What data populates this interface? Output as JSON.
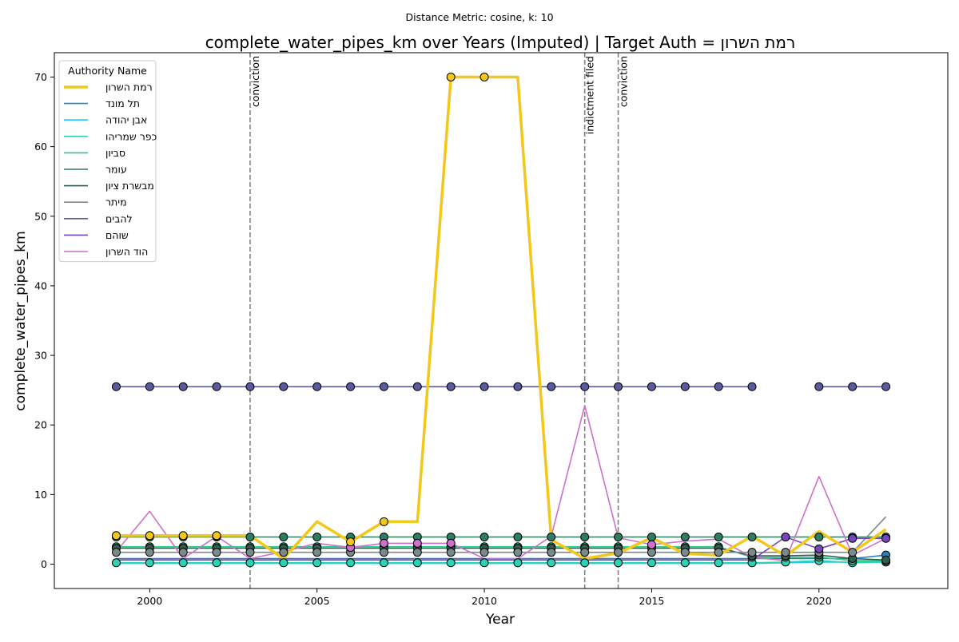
{
  "chart_data": {
    "type": "line",
    "suptitle": "Distance Metric: cosine, k: 10",
    "title": "complete_water_pipes_km over Years (Imputed) | Target Auth = רמת השרון",
    "xlabel": "Year",
    "ylabel": "complete_water_pipes_km",
    "xlim": [
      1997.15,
      2023.85
    ],
    "ylim": [
      -3.5,
      73.5
    ],
    "xticks": [
      2000,
      2005,
      2010,
      2015,
      2020
    ],
    "yticks": [
      0,
      10,
      20,
      30,
      40,
      50,
      60,
      70
    ],
    "grid": false,
    "legend": {
      "title": "Authority Name",
      "placement": "upper-left"
    },
    "events": [
      {
        "x": 2003,
        "label": "conviction"
      },
      {
        "x": 2013,
        "label": "indictment filed"
      },
      {
        "x": 2014,
        "label": "conviction"
      }
    ],
    "x": [
      1999,
      2000,
      2001,
      2002,
      2003,
      2004,
      2005,
      2006,
      2007,
      2008,
      2009,
      2010,
      2011,
      2012,
      2013,
      2014,
      2015,
      2016,
      2017,
      2018,
      2019,
      2020,
      2021,
      2022
    ],
    "series": [
      {
        "name": "רמת השרון",
        "color": "#f2c81a",
        "target": true,
        "values": [
          4.1,
          4.1,
          4.1,
          4.1,
          4.1,
          0.8,
          6.1,
          3.2,
          6.1,
          6.1,
          70,
          70,
          70,
          3.5,
          0.8,
          1.6,
          3.8,
          1.5,
          1.3,
          4.0,
          1.2,
          4.7,
          1.7,
          5.0
        ],
        "markers": [
          0,
          1,
          2,
          3,
          7,
          8,
          10,
          11
        ]
      },
      {
        "name": "תל מונד",
        "color": "#1f83c4",
        "values": [
          0.8,
          0.8,
          0.8,
          0.8,
          0.8,
          0.8,
          0.8,
          0.8,
          0.8,
          0.8,
          0.8,
          0.8,
          0.8,
          0.8,
          0.8,
          0.8,
          0.8,
          0.8,
          0.8,
          0.8,
          0.8,
          0.8,
          0.8,
          1.3
        ],
        "markers": [
          23
        ]
      },
      {
        "name": "אבן יהודה",
        "color": "#22c6ea",
        "values": [
          0.1,
          0.1,
          0.1,
          0.1,
          0.1,
          0.1,
          0.1,
          0.1,
          0.1,
          0.1,
          0.1,
          0.1,
          0.1,
          0.1,
          0.1,
          0.1,
          0.1,
          0.1,
          0.1,
          0.1,
          0.2,
          0.3,
          0.3,
          0.4
        ],
        "markers": []
      },
      {
        "name": "כפר שמריהו",
        "color": "#2bd3b6",
        "values": [
          0.2,
          0.2,
          0.2,
          0.2,
          0.2,
          0.2,
          0.2,
          0.2,
          0.2,
          0.2,
          0.2,
          0.2,
          0.2,
          0.2,
          0.2,
          0.2,
          0.2,
          0.2,
          0.2,
          0.2,
          0.3,
          0.5,
          0.2,
          0.3
        ],
        "markers": [
          0,
          1,
          2,
          3,
          4,
          5,
          6,
          7,
          8,
          9,
          10,
          11,
          12,
          13,
          14,
          15,
          16,
          17,
          18,
          19,
          20,
          21,
          22,
          23
        ]
      },
      {
        "name": "סביון",
        "color": "#2ec98a",
        "values": [
          2.5,
          2.5,
          2.5,
          2.5,
          2.5,
          2.5,
          2.5,
          2.5,
          2.5,
          2.5,
          2.5,
          2.5,
          2.5,
          2.5,
          2.5,
          2.5,
          2.5,
          2.5,
          2.5,
          1.0,
          1.0,
          1.0,
          0.5,
          0.5
        ],
        "markers": [
          0,
          1,
          2,
          3,
          4,
          5,
          6,
          7,
          8,
          9,
          10,
          11,
          12,
          13,
          14,
          15,
          16,
          17,
          18,
          19,
          20,
          21,
          22,
          23
        ]
      },
      {
        "name": "עומר",
        "color": "#2e7d5e",
        "values": [
          3.9,
          3.9,
          3.9,
          3.9,
          3.9,
          3.9,
          3.9,
          3.9,
          3.9,
          3.9,
          3.9,
          3.9,
          3.9,
          3.9,
          3.9,
          3.9,
          3.9,
          3.9,
          3.9,
          3.9,
          3.9,
          3.9,
          3.9,
          3.9
        ],
        "markers": [
          0,
          1,
          2,
          3,
          4,
          5,
          6,
          7,
          8,
          9,
          10,
          11,
          12,
          13,
          14,
          15,
          16,
          17,
          18,
          19,
          20,
          21,
          22,
          23
        ]
      },
      {
        "name": "מבשרת ציון",
        "color": "#2f5e50",
        "values": [
          2.3,
          2.3,
          2.3,
          2.3,
          2.3,
          2.3,
          2.3,
          2.3,
          2.3,
          2.3,
          2.3,
          2.3,
          2.3,
          2.3,
          2.3,
          2.3,
          2.3,
          2.3,
          2.3,
          1.2,
          1.2,
          1.3,
          0.8,
          0.6
        ],
        "markers": [
          0,
          1,
          2,
          3,
          4,
          5,
          6,
          7,
          8,
          9,
          10,
          11,
          12,
          13,
          14,
          15,
          16,
          17,
          18,
          19,
          20,
          21,
          22,
          23
        ]
      },
      {
        "name": "מיתר",
        "color": "#7a8a8a",
        "values": [
          1.7,
          1.7,
          1.7,
          1.7,
          1.7,
          1.7,
          1.7,
          1.7,
          1.7,
          1.7,
          1.7,
          1.7,
          1.7,
          1.7,
          1.7,
          1.7,
          1.7,
          1.7,
          1.7,
          1.7,
          1.7,
          1.7,
          1.7,
          6.8
        ],
        "markers": [
          0,
          1,
          2,
          3,
          4,
          5,
          6,
          7,
          8,
          9,
          10,
          11,
          12,
          13,
          14,
          15,
          16,
          17,
          18,
          19,
          20,
          21,
          22
        ]
      },
      {
        "name": "להבים",
        "color": "#5a5a9e",
        "values": [
          25.5,
          25.5,
          25.5,
          25.5,
          25.5,
          25.5,
          25.5,
          25.5,
          25.5,
          25.5,
          25.5,
          25.5,
          25.5,
          25.5,
          25.5,
          25.5,
          25.5,
          25.5,
          25.5,
          25.5,
          null,
          25.5,
          25.5,
          25.5
        ],
        "markers": [
          0,
          1,
          2,
          3,
          4,
          5,
          6,
          7,
          8,
          9,
          10,
          11,
          12,
          13,
          14,
          15,
          16,
          17,
          18,
          19,
          21,
          22,
          23
        ]
      },
      {
        "name": "שוהם",
        "color": "#7744bb",
        "values": [
          0.6,
          0.6,
          0.6,
          0.6,
          0.6,
          0.6,
          0.6,
          0.6,
          0.6,
          0.6,
          0.6,
          0.6,
          0.6,
          0.6,
          0.6,
          0.6,
          0.6,
          0.6,
          0.6,
          0.6,
          3.9,
          2.2,
          3.7,
          3.7
        ],
        "markers": [
          20,
          21,
          22,
          23
        ]
      },
      {
        "name": "הוד השרון",
        "color": "#cc70cc",
        "values": [
          1.8,
          7.6,
          0.8,
          4.0,
          0.8,
          1.8,
          3.0,
          2.4,
          3.0,
          3.0,
          3.0,
          0.8,
          0.8,
          4.0,
          22.8,
          3.8,
          2.8,
          3.3,
          3.6,
          1.0,
          0.5,
          12.6,
          1.3,
          3.7
        ],
        "markers": [
          3,
          7,
          8,
          9,
          10,
          16
        ]
      }
    ]
  }
}
